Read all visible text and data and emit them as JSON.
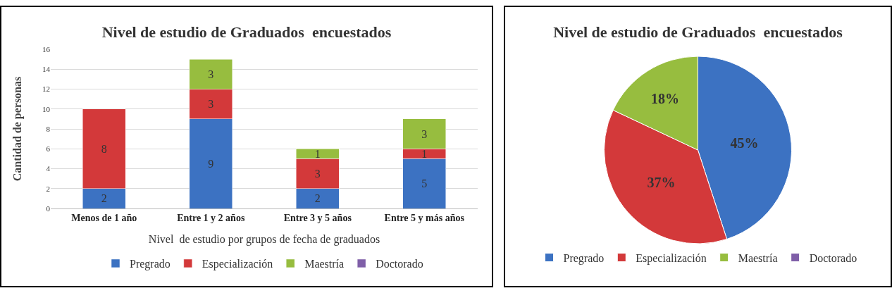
{
  "chart_data": [
    {
      "type": "bar",
      "stacked": true,
      "title": "Nivel de estudio de Graduados  encuestados",
      "xlabel": "Nivel  de estudio por grupos de fecha de graduados",
      "ylabel": "Cantidad de personas",
      "categories": [
        "Menos de 1 año",
        "Entre 1 y 2 años",
        "Entre 3 y 5 años",
        "Entre 5 y más años"
      ],
      "series": [
        {
          "name": "Pregrado",
          "color": "#3c72c2",
          "values": [
            2,
            9,
            2,
            5
          ]
        },
        {
          "name": "Especialización",
          "color": "#d3393a",
          "values": [
            8,
            3,
            3,
            1
          ]
        },
        {
          "name": "Maestría",
          "color": "#97bd3f",
          "values": [
            null,
            3,
            1,
            3
          ]
        },
        {
          "name": "Doctorado",
          "color": "#7f5fa8",
          "values": [
            null,
            null,
            null,
            null
          ]
        }
      ],
      "ylim": [
        0,
        16
      ],
      "yticks": [
        0,
        2,
        4,
        6,
        8,
        10,
        12,
        14,
        16
      ],
      "grid": "y",
      "legend": "bottom",
      "data_labels": true
    },
    {
      "type": "pie",
      "title": "Nivel de estudio de Graduados  encuestados",
      "categories": [
        "Pregrado",
        "Especialización",
        "Maestría",
        "Doctorado"
      ],
      "values": [
        45,
        37,
        18,
        0
      ],
      "value_labels": [
        "45%",
        "37%",
        "18%",
        null
      ],
      "colors": [
        "#3c72c2",
        "#d3393a",
        "#97bd3f",
        "#7f5fa8"
      ],
      "legend": "bottom"
    }
  ]
}
